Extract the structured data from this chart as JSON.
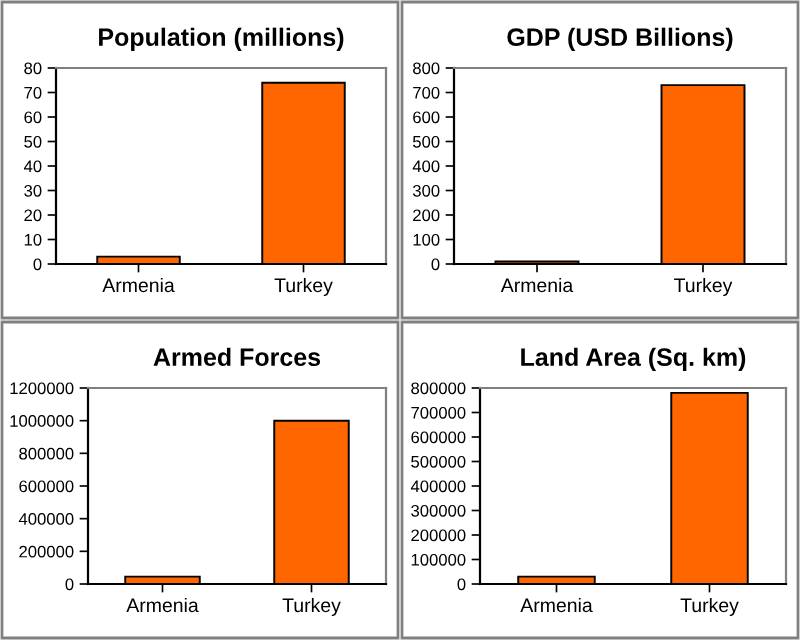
{
  "chart_data": [
    {
      "type": "bar",
      "title": "Population (millions)",
      "categories": [
        "Armenia",
        "Turkey"
      ],
      "values": [
        3,
        74
      ],
      "color": "#ff6600",
      "ylim": [
        0,
        80
      ],
      "yticks": [
        0,
        10,
        20,
        30,
        40,
        50,
        60,
        70,
        80
      ],
      "grid": false
    },
    {
      "type": "bar",
      "title": "GDP (USD Billions)",
      "categories": [
        "Armenia",
        "Turkey"
      ],
      "values": [
        10,
        730
      ],
      "color": "#ff6600",
      "ylim": [
        0,
        800
      ],
      "yticks": [
        0,
        100,
        200,
        300,
        400,
        500,
        600,
        700,
        800
      ],
      "grid": false
    },
    {
      "type": "bar",
      "title": "Armed Forces",
      "categories": [
        "Armenia",
        "Turkey"
      ],
      "values": [
        45000,
        1000000
      ],
      "color": "#ff6600",
      "ylim": [
        0,
        1200000
      ],
      "yticks": [
        0,
        200000,
        400000,
        600000,
        800000,
        1000000,
        1200000
      ],
      "grid": false
    },
    {
      "type": "bar",
      "title": "Land Area (Sq. km)",
      "categories": [
        "Armenia",
        "Turkey"
      ],
      "values": [
        30000,
        780000
      ],
      "color": "#ff6600",
      "ylim": [
        0,
        800000
      ],
      "yticks": [
        0,
        100000,
        200000,
        300000,
        400000,
        500000,
        600000,
        700000,
        800000
      ],
      "grid": false
    }
  ]
}
